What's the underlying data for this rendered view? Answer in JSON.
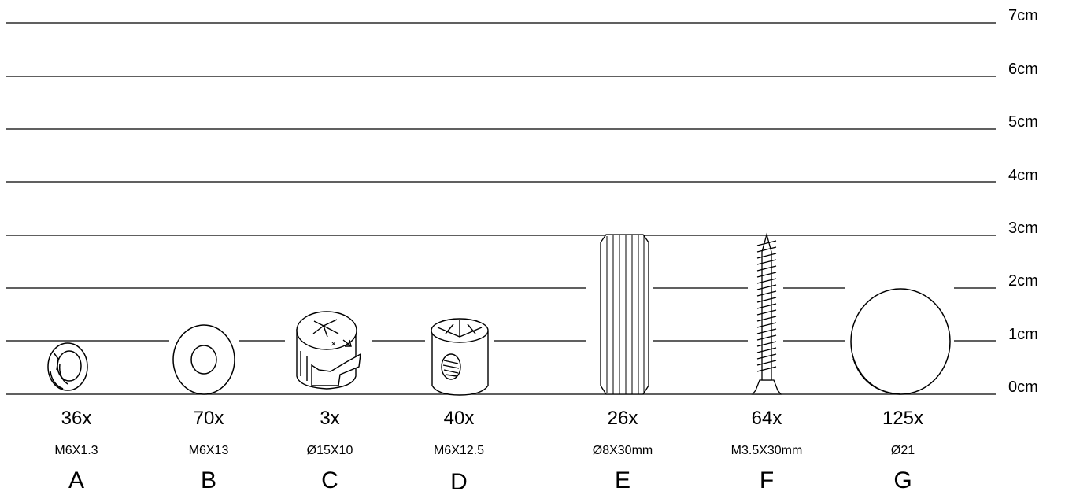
{
  "scale_labels": [
    "7cm",
    "6cm",
    "5cm",
    "4cm",
    "3cm",
    "2cm",
    "1cm",
    "0cm"
  ],
  "parts": [
    {
      "letter": "A",
      "qty": "36x",
      "spec": "M6X1.3",
      "icon": "spring-washer-icon"
    },
    {
      "letter": "B",
      "qty": "70x",
      "spec": "M6X13",
      "icon": "flat-washer-icon"
    },
    {
      "letter": "C",
      "qty": "3x",
      "spec": "Ø15X10",
      "icon": "cam-lock-icon"
    },
    {
      "letter": "D",
      "qty": "40x",
      "spec": "M6X12.5",
      "icon": "barrel-nut-icon"
    },
    {
      "letter": "E",
      "qty": "26x",
      "spec": "Ø8X30mm",
      "icon": "wooden-dowel-icon"
    },
    {
      "letter": "F",
      "qty": "64x",
      "spec": "M3.5X30mm",
      "icon": "wood-screw-icon"
    },
    {
      "letter": "G",
      "qty": "125x",
      "spec": "Ø21",
      "icon": "cover-cap-icon"
    }
  ]
}
